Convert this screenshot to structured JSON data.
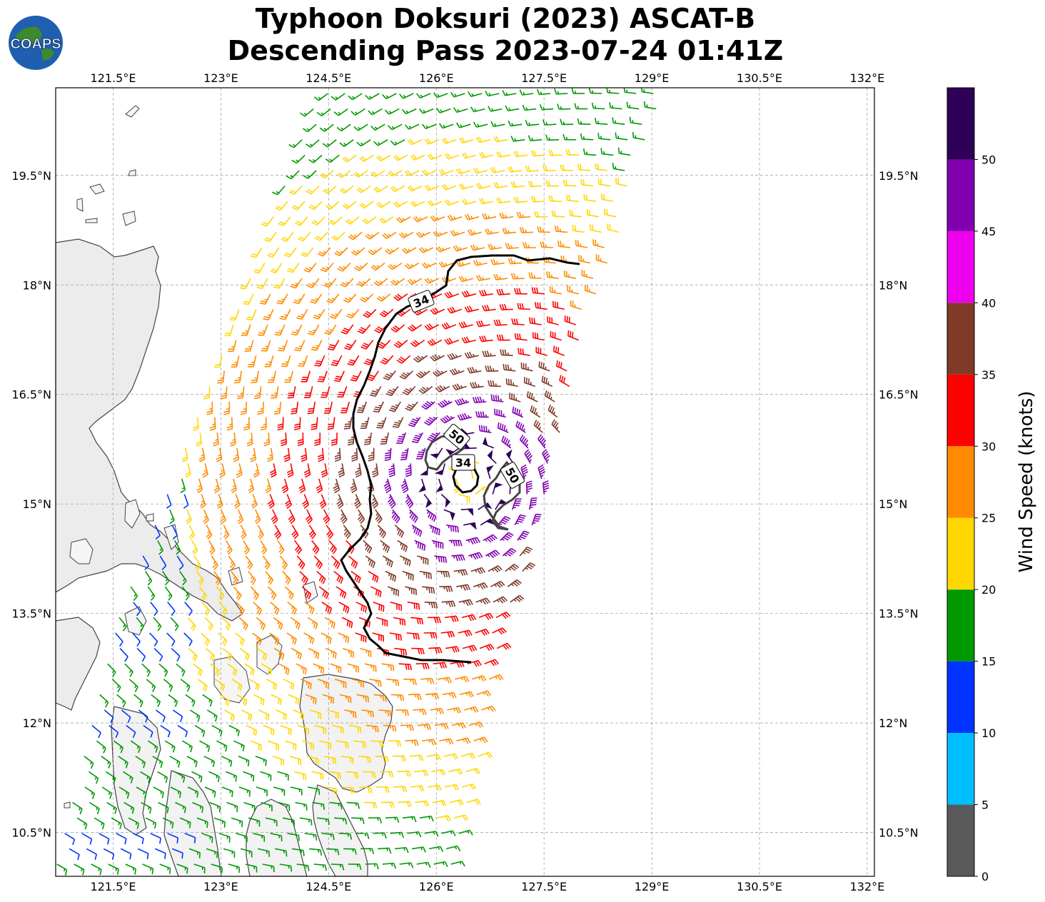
{
  "title": {
    "line1": "Typhoon Doksuri (2023) ASCAT-B",
    "line2": "Descending Pass 2023-07-24 01:41Z"
  },
  "logo": {
    "text": "COAPS"
  },
  "map": {
    "lon_range": [
      120.7,
      132.1
    ],
    "lat_range": [
      9.9,
      20.7
    ],
    "lon_ticks": [
      {
        "value": 121.5,
        "label": "121.5°E"
      },
      {
        "value": 123.0,
        "label": "123°E"
      },
      {
        "value": 124.5,
        "label": "124.5°E"
      },
      {
        "value": 126.0,
        "label": "126°E"
      },
      {
        "value": 127.5,
        "label": "127.5°E"
      },
      {
        "value": 129.0,
        "label": "129°E"
      },
      {
        "value": 130.5,
        "label": "130.5°E"
      },
      {
        "value": 132.0,
        "label": "132°E"
      }
    ],
    "lat_ticks": [
      {
        "value": 10.5,
        "label": "10.5°N"
      },
      {
        "value": 12.0,
        "label": "12°N"
      },
      {
        "value": 13.5,
        "label": "13.5°N"
      },
      {
        "value": 15.0,
        "label": "15°N"
      },
      {
        "value": 16.5,
        "label": "16.5°N"
      },
      {
        "value": 18.0,
        "label": "18°N"
      },
      {
        "value": 19.5,
        "label": "19.5°N"
      }
    ],
    "grid": true,
    "wind_field": {
      "center": [
        126.45,
        15.35
      ],
      "swath_axis_west": [
        [
          124.4,
          20.7
        ],
        [
          123.0,
          17.0
        ],
        [
          121.6,
          13.5
        ],
        [
          120.7,
          10.0
        ]
      ],
      "swath_axis_east": [
        [
          129.2,
          20.7
        ],
        [
          128.0,
          17.0
        ],
        [
          127.2,
          14.0
        ],
        [
          126.2,
          10.0
        ]
      ]
    },
    "contours": [
      {
        "label": "34",
        "level": 34,
        "color": "#000000"
      },
      {
        "label": "50",
        "level": 50,
        "color": "#444444"
      },
      {
        "label": "34",
        "level": 34,
        "color": "#000000"
      },
      {
        "label": "50",
        "level": 50,
        "color": "#444444"
      }
    ]
  },
  "colorbar": {
    "label": "Wind Speed (knots)",
    "bins": [
      {
        "min": 0,
        "max": 5,
        "color": "#595959"
      },
      {
        "min": 5,
        "max": 10,
        "color": "#00BFFF"
      },
      {
        "min": 10,
        "max": 15,
        "color": "#0033FF"
      },
      {
        "min": 15,
        "max": 20,
        "color": "#009900"
      },
      {
        "min": 20,
        "max": 25,
        "color": "#FFD700"
      },
      {
        "min": 25,
        "max": 30,
        "color": "#FF8C00"
      },
      {
        "min": 30,
        "max": 35,
        "color": "#FF0000"
      },
      {
        "min": 35,
        "max": 40,
        "color": "#7F3A28"
      },
      {
        "min": 40,
        "max": 45,
        "color": "#EE00EE"
      },
      {
        "min": 45,
        "max": 50,
        "color": "#8000B0"
      },
      {
        "min": 50,
        "max": 55,
        "color": "#2E0057"
      }
    ],
    "ticks": [
      "0",
      "5",
      "10",
      "15",
      "20",
      "25",
      "30",
      "35",
      "40",
      "45",
      "50"
    ]
  }
}
